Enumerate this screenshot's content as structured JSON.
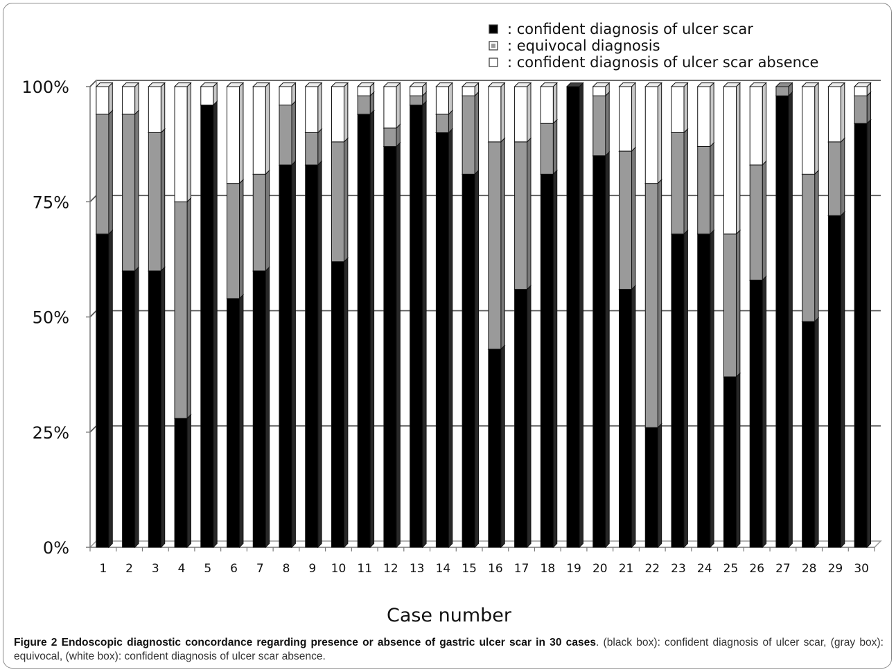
{
  "chart_data": {
    "type": "bar",
    "stacked": true,
    "normalized": true,
    "categories": [
      "1",
      "2",
      "3",
      "4",
      "5",
      "6",
      "7",
      "8",
      "9",
      "10",
      "11",
      "12",
      "13",
      "14",
      "15",
      "16",
      "17",
      "18",
      "19",
      "20",
      "21",
      "22",
      "23",
      "24",
      "25",
      "26",
      "27",
      "28",
      "29",
      "30"
    ],
    "series": [
      {
        "name": "confident diagnosis of ulcer scar",
        "color": "#000000",
        "values": [
          68,
          60,
          60,
          28,
          96,
          54,
          60,
          83,
          83,
          62,
          94,
          87,
          96,
          90,
          81,
          43,
          56,
          81,
          100,
          85,
          56,
          26,
          68,
          68,
          37,
          58,
          98,
          49,
          72,
          92
        ]
      },
      {
        "name": "equivocal diagnosis",
        "color": "#9a9a9a",
        "values": [
          26,
          34,
          30,
          47,
          0,
          25,
          21,
          13,
          7,
          26,
          4,
          4,
          2,
          4,
          17,
          45,
          32,
          11,
          0,
          13,
          30,
          53,
          22,
          19,
          31,
          25,
          2,
          32,
          16,
          6
        ]
      },
      {
        "name": "confident diagnosis of ulcer scar absence",
        "color": "#ffffff",
        "values": [
          6,
          6,
          10,
          25,
          4,
          21,
          19,
          4,
          10,
          12,
          2,
          9,
          2,
          6,
          2,
          12,
          12,
          8,
          0,
          2,
          14,
          21,
          10,
          13,
          32,
          17,
          0,
          19,
          12,
          2
        ]
      }
    ],
    "yticks": [
      "0%",
      "25%",
      "50%",
      "75%",
      "100%"
    ],
    "ylim": [
      0,
      100
    ],
    "xlabel": "Case number",
    "ylabel": "",
    "grid": true,
    "legend_position": "top-right",
    "legend": [
      {
        "symbol": "■",
        "label": ": confident diagnosis of ulcer scar"
      },
      {
        "symbol": "▣",
        "label": ": equivocal diagnosis"
      },
      {
        "symbol": "□",
        "label": ": confident diagnosis of ulcer scar absence"
      }
    ]
  },
  "caption": {
    "title": "Figure 2 Endoscopic diagnostic concordance regarding presence or absence of gastric ulcer scar in 30 cases",
    "text": ". (black box): confident diagnosis of ulcer scar, (gray box): equivocal, (white box): confident diagnosis of ulcer scar absence."
  }
}
